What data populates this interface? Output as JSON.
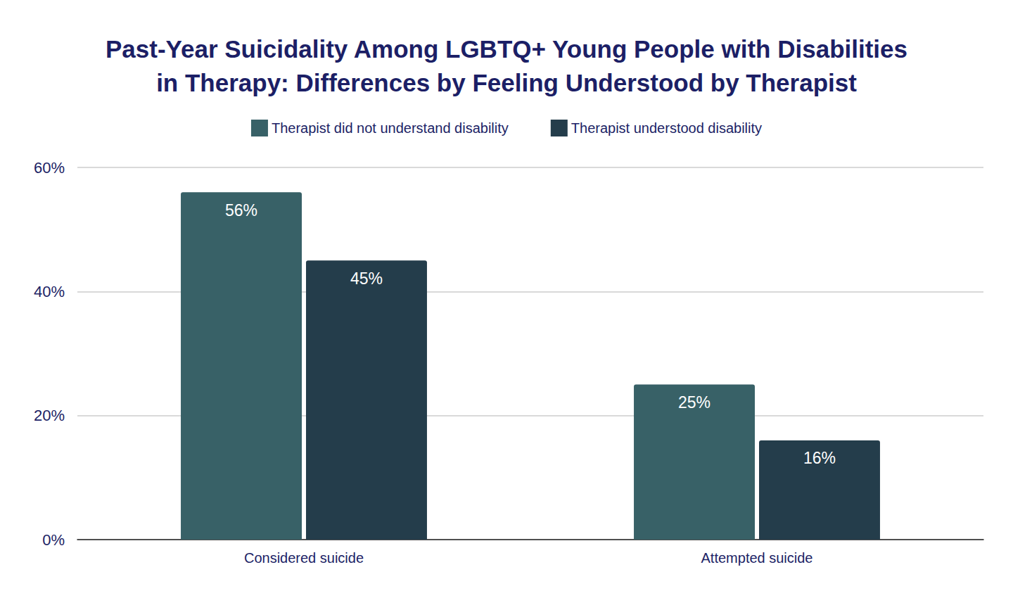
{
  "chart_data": {
    "type": "bar",
    "title": "Past-Year Suicidality Among LGBTQ+ Young People with Disabilities\nin Therapy: Differences by Feeling Understood by Therapist",
    "categories": [
      "Considered suicide",
      "Attempted suicide"
    ],
    "series": [
      {
        "name": "Therapist did not understand disability",
        "color": "#386167",
        "values": [
          56,
          25
        ],
        "value_labels": [
          "56%",
          "25%"
        ]
      },
      {
        "name": "Therapist understood disability",
        "color": "#243d4b",
        "values": [
          45,
          16
        ],
        "value_labels": [
          "45%",
          "16%"
        ]
      }
    ],
    "ylim": [
      0,
      60
    ],
    "yticks": [
      {
        "value": 0,
        "label": "0%"
      },
      {
        "value": 20,
        "label": "20%"
      },
      {
        "value": 40,
        "label": "40%"
      },
      {
        "value": 60,
        "label": "60%"
      }
    ],
    "grid": true,
    "legend": "top",
    "data_labels": true
  }
}
